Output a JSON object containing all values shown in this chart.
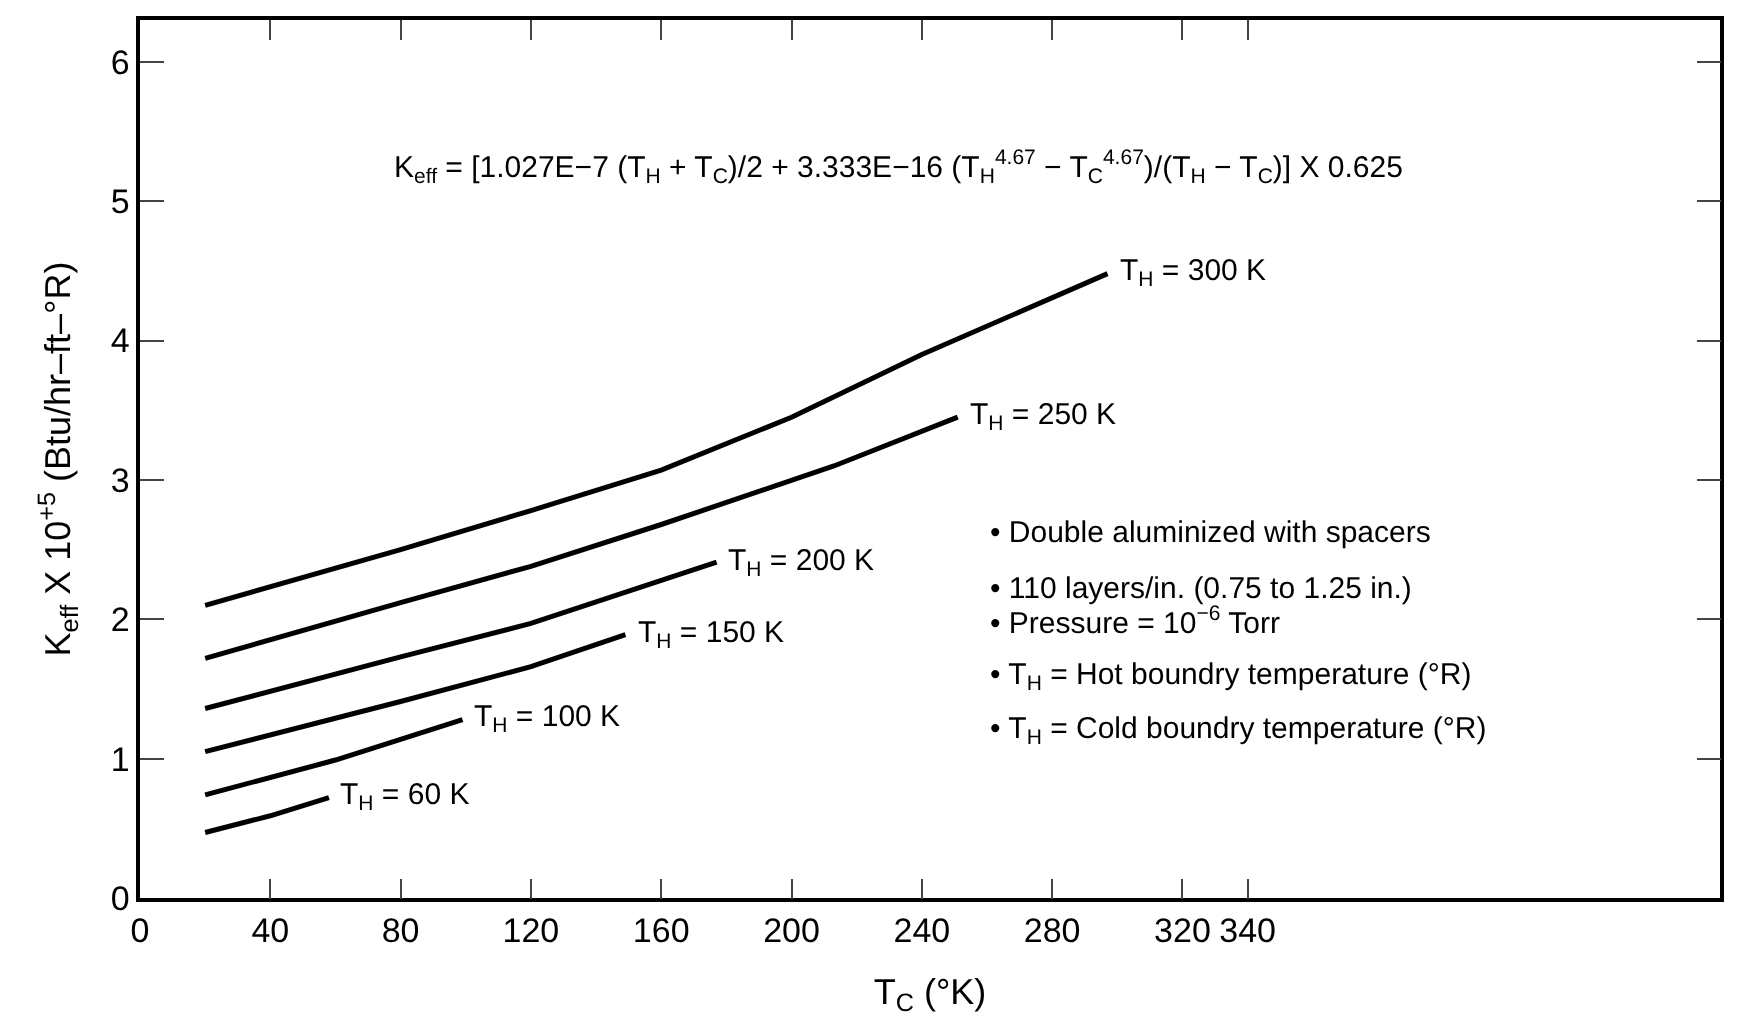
{
  "chart_data": {
    "type": "line",
    "xlabel": "T$_{C}$ (°K)",
    "ylabel": "K$_{eff}$ X 10$^{+5}$ (Btu/hr–ft–°R)",
    "xlim": [
      0,
      485
    ],
    "xticks": [
      0,
      40,
      80,
      120,
      160,
      200,
      240,
      280,
      320,
      340
    ],
    "ylim": [
      0,
      6.3
    ],
    "yticks": [
      0,
      1,
      2,
      3,
      4,
      5,
      6
    ],
    "legend": false,
    "marker": "none",
    "line_style": "solid",
    "series": [
      {
        "name": "T$_{H}$ = 300 K",
        "color": "#000000",
        "x": [
          20,
          80,
          120,
          160,
          200,
          240,
          297
        ],
        "values": [
          2.1,
          2.5,
          2.78,
          3.07,
          3.45,
          3.9,
          4.48
        ]
      },
      {
        "name": "T$_{H}$ = 250 K",
        "color": "#000000",
        "x": [
          20,
          80,
          120,
          160,
          213,
          251
        ],
        "values": [
          1.72,
          2.12,
          2.38,
          2.68,
          3.1,
          3.45
        ]
      },
      {
        "name": "T$_{H}$ = 200 K",
        "color": "#000000",
        "x": [
          20,
          80,
          120,
          177
        ],
        "values": [
          1.36,
          1.73,
          1.97,
          2.41
        ]
      },
      {
        "name": "T$_{H}$ = 150 K",
        "color": "#000000",
        "x": [
          20,
          80,
          120,
          149
        ],
        "values": [
          1.05,
          1.41,
          1.66,
          1.89
        ]
      },
      {
        "name": "T$_{H}$ = 100 K",
        "color": "#000000",
        "x": [
          20,
          60,
          99
        ],
        "values": [
          0.74,
          0.99,
          1.28
        ]
      },
      {
        "name": "T$_{H}$ = 60 K",
        "color": "#000000",
        "x": [
          20,
          40,
          58
        ],
        "values": [
          0.47,
          0.59,
          0.72
        ]
      }
    ],
    "annotations": [
      "K$_{eff}$ = [1.027E−7 (T$_{H}$ + T$_{C}$)/2 + 3.333E−16 (T$_{H}$$^{4.67}$ − T$_{C}$$^{4.67}$)/(T$_{H}$ − T$_{C}$)] X 0.625",
      "• Double aluminized with spacers",
      "• 110 layers/in. (0.75 to 1.25 in.)",
      "• Pressure = 10$^{−6}$ Torr",
      "• T$_{H}$ = Hot boundry temperature (°R)",
      "• T$_{H}$ = Cold boundry temperature (°R)"
    ]
  }
}
